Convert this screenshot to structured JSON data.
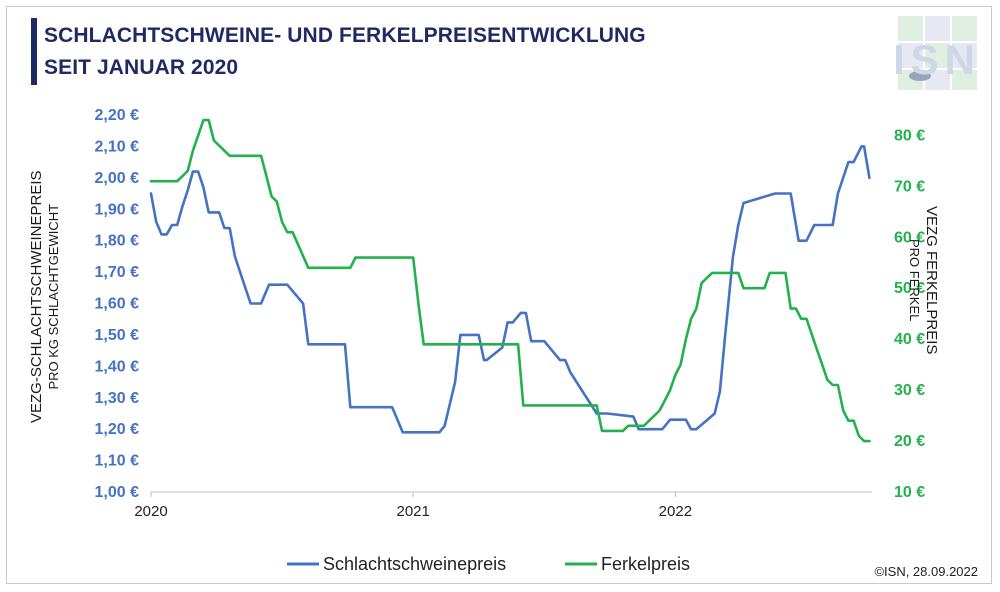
{
  "header": {
    "title_line1": "SCHLACHTSCHWEINE- UND FERKELPREISENTWICKLUNG",
    "title_line2": "SEIT JANUAR 2020"
  },
  "logo": {
    "text": "ISN"
  },
  "footer": {
    "copyright": "©ISN, 28.09.2022"
  },
  "colors": {
    "pig": "#4472c4",
    "piglet": "#22b14c",
    "title": "#1f2a64"
  },
  "chart_data": {
    "type": "line",
    "title": "SCHLACHTSCHWEINE- UND FERKELPREISENTWICKLUNG SEIT JANUAR 2020",
    "x_tick_labels": [
      "2020",
      "2021",
      "2022"
    ],
    "x_ticks": [
      2020,
      2021,
      2022
    ],
    "xlim": [
      2020.0,
      2022.75
    ],
    "y_left": {
      "label_line1": "VEZG-SCHLACHTSCHWEINEPREIS",
      "label_line2": "PRO KG SCHLACHTGEWICHT",
      "ylim": [
        1.0,
        2.2
      ],
      "ticks": [
        1.0,
        1.1,
        1.2,
        1.3,
        1.4,
        1.5,
        1.6,
        1.7,
        1.8,
        1.9,
        2.0,
        2.1,
        2.2
      ],
      "tick_labels": [
        "1,00 €",
        "1,10 €",
        "1,20 €",
        "1,30 €",
        "1,40 €",
        "1,50 €",
        "1,60 €",
        "1,70 €",
        "1,80 €",
        "1,90 €",
        "2,00 €",
        "2,10 €",
        "2,20 €"
      ]
    },
    "y_right": {
      "label_line1": "VEZG FERKELPREIS",
      "label_line2": "PRO FERKEL",
      "ylim": [
        10,
        84
      ],
      "ticks": [
        10,
        20,
        30,
        40,
        50,
        60,
        70,
        80
      ],
      "tick_labels": [
        "10 €",
        "20 €",
        "30 €",
        "40 €",
        "50 €",
        "60 €",
        "70 €",
        "80 €"
      ]
    },
    "grid": false,
    "legend_position": "bottom",
    "series": [
      {
        "name": "Schlachtschweinepreis",
        "axis": "left",
        "x": [
          2020.0,
          2020.02,
          2020.04,
          2020.06,
          2020.08,
          2020.1,
          2020.12,
          2020.14,
          2020.16,
          2020.18,
          2020.2,
          2020.22,
          2020.24,
          2020.26,
          2020.28,
          2020.3,
          2020.32,
          2020.34,
          2020.38,
          2020.42,
          2020.45,
          2020.48,
          2020.5,
          2020.52,
          2020.58,
          2020.6,
          2020.62,
          2020.74,
          2020.76,
          2020.84,
          2020.92,
          2020.96,
          2020.98,
          2021.0,
          2021.04,
          2021.1,
          2021.12,
          2021.16,
          2021.18,
          2021.2,
          2021.23,
          2021.25,
          2021.27,
          2021.28,
          2021.34,
          2021.36,
          2021.38,
          2021.41,
          2021.43,
          2021.45,
          2021.47,
          2021.5,
          2021.56,
          2021.58,
          2021.6,
          2021.7,
          2021.74,
          2021.84,
          2021.86,
          2021.92,
          2021.95,
          2021.98,
          2022.0,
          2022.02,
          2022.04,
          2022.06,
          2022.08,
          2022.15,
          2022.17,
          2022.19,
          2022.22,
          2022.24,
          2022.26,
          2022.38,
          2022.44,
          2022.47,
          2022.49,
          2022.5,
          2022.53,
          2022.55,
          2022.57,
          2022.6,
          2022.62,
          2022.66,
          2022.68,
          2022.71,
          2022.72,
          2022.74
        ],
        "y": [
          1.95,
          1.86,
          1.82,
          1.82,
          1.85,
          1.85,
          1.91,
          1.96,
          2.02,
          2.02,
          1.97,
          1.89,
          1.89,
          1.89,
          1.84,
          1.84,
          1.75,
          1.7,
          1.6,
          1.6,
          1.66,
          1.66,
          1.66,
          1.66,
          1.6,
          1.47,
          1.47,
          1.47,
          1.27,
          1.27,
          1.27,
          1.19,
          1.19,
          1.19,
          1.19,
          1.19,
          1.21,
          1.35,
          1.5,
          1.5,
          1.5,
          1.5,
          1.42,
          1.42,
          1.46,
          1.54,
          1.54,
          1.57,
          1.57,
          1.48,
          1.48,
          1.48,
          1.42,
          1.42,
          1.38,
          1.25,
          1.25,
          1.24,
          1.2,
          1.2,
          1.2,
          1.23,
          1.23,
          1.23,
          1.23,
          1.2,
          1.2,
          1.25,
          1.32,
          1.5,
          1.75,
          1.85,
          1.92,
          1.95,
          1.95,
          1.8,
          1.8,
          1.8,
          1.85,
          1.85,
          1.85,
          1.85,
          1.95,
          2.05,
          2.05,
          2.1,
          2.1,
          2.0
        ]
      },
      {
        "name": "Ferkelpreis",
        "axis": "right",
        "x": [
          2020.0,
          2020.08,
          2020.1,
          2020.14,
          2020.16,
          2020.18,
          2020.2,
          2020.22,
          2020.24,
          2020.28,
          2020.3,
          2020.32,
          2020.34,
          2020.38,
          2020.4,
          2020.42,
          2020.44,
          2020.46,
          2020.48,
          2020.5,
          2020.52,
          2020.54,
          2020.6,
          2020.62,
          2020.76,
          2020.78,
          2020.84,
          2020.92,
          2020.96,
          2020.98,
          2021.0,
          2021.02,
          2021.04,
          2021.06,
          2021.08,
          2021.1,
          2021.12,
          2021.14,
          2021.16,
          2021.18,
          2021.2,
          2021.22,
          2021.24,
          2021.26,
          2021.28,
          2021.3,
          2021.32,
          2021.34,
          2021.36,
          2021.38,
          2021.4,
          2021.42,
          2021.44,
          2021.46,
          2021.48,
          2021.5,
          2021.52,
          2021.56,
          2021.58,
          2021.6,
          2021.62,
          2021.64,
          2021.66,
          2021.7,
          2021.72,
          2021.74,
          2021.78,
          2021.8,
          2021.82,
          2021.84,
          2021.86,
          2021.88,
          2021.9,
          2021.92,
          2021.94,
          2021.96,
          2021.98,
          2022.0,
          2022.02,
          2022.04,
          2022.06,
          2022.08,
          2022.1,
          2022.14,
          2022.16,
          2022.18,
          2022.2,
          2022.22,
          2022.24,
          2022.26,
          2022.28,
          2022.3,
          2022.32,
          2022.34,
          2022.36,
          2022.38,
          2022.4,
          2022.42,
          2022.44,
          2022.46,
          2022.48,
          2022.5,
          2022.52,
          2022.54,
          2022.56,
          2022.58,
          2022.6,
          2022.62,
          2022.64,
          2022.66,
          2022.68,
          2022.7,
          2022.72,
          2022.74
        ],
        "y": [
          71,
          71,
          71,
          73,
          77,
          80,
          83,
          83,
          79,
          77,
          76,
          76,
          76,
          76,
          76,
          76,
          72,
          68,
          67,
          63,
          61,
          61,
          54,
          54,
          54,
          56,
          56,
          56,
          56,
          56,
          56,
          47,
          39,
          39,
          39,
          39,
          39,
          39,
          39,
          39,
          39,
          39,
          39,
          39,
          39,
          39,
          39,
          39,
          39,
          39,
          39,
          27,
          27,
          27,
          27,
          27,
          27,
          27,
          27,
          27,
          27,
          27,
          27,
          27,
          22,
          22,
          22,
          22,
          23,
          23,
          23,
          23,
          24,
          25,
          26,
          28,
          30,
          33,
          35,
          40,
          44,
          46,
          51,
          53,
          53,
          53,
          53,
          53,
          53,
          50,
          50,
          50,
          50,
          50,
          53,
          53,
          53,
          53,
          46,
          46,
          44,
          44,
          41,
          38,
          35,
          32,
          31,
          31,
          26,
          24,
          24,
          21,
          20,
          20
        ]
      }
    ]
  }
}
